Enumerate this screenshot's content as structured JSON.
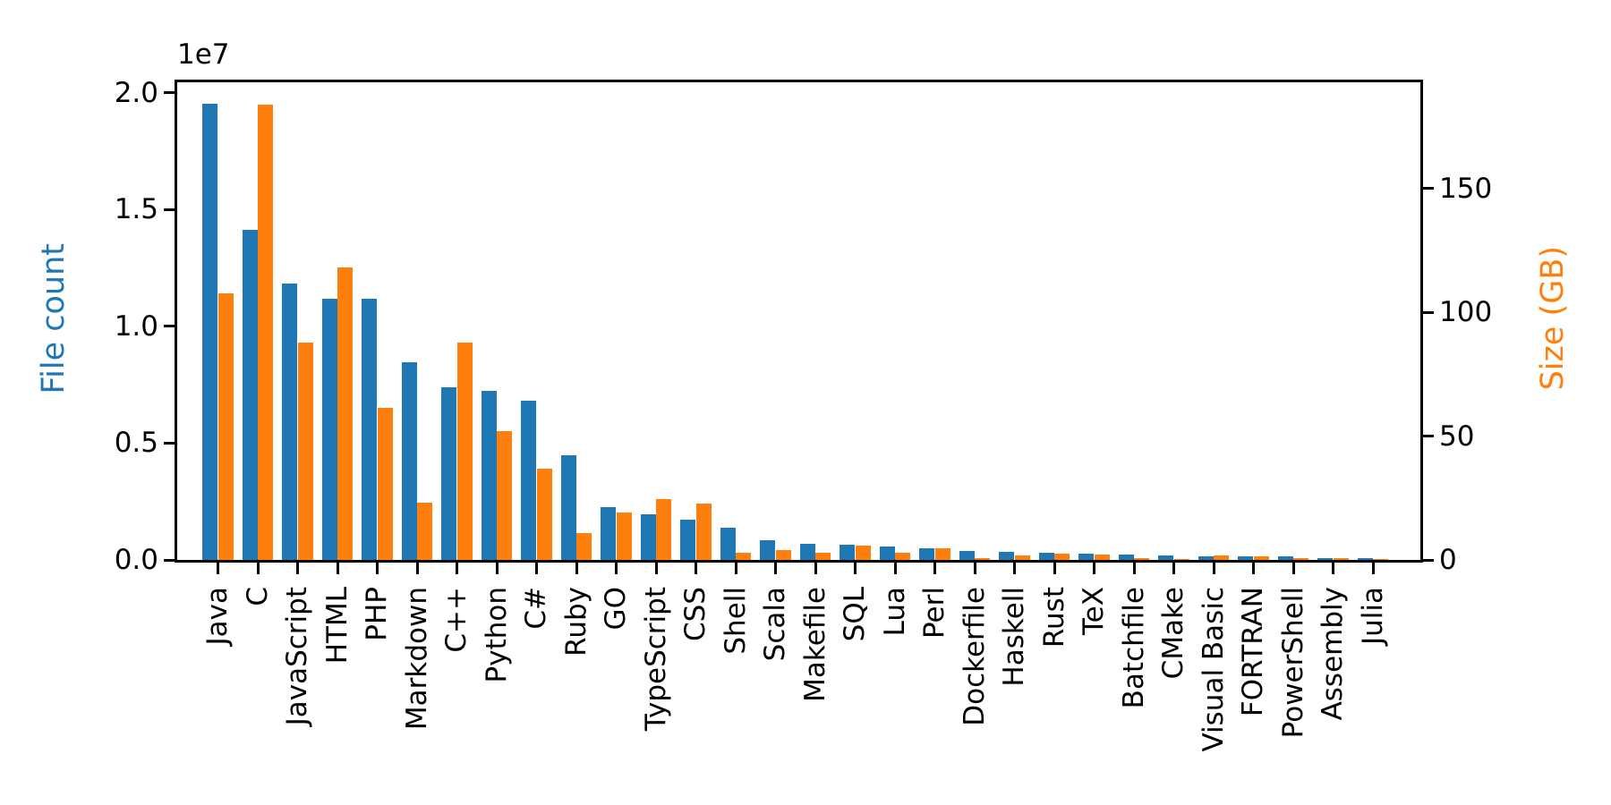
{
  "chart_data": {
    "type": "bar",
    "title": "",
    "grid": false,
    "legend": "none",
    "bar_orientation": "vertical",
    "categories": [
      "Java",
      "C",
      "JavaScript",
      "HTML",
      "PHP",
      "Markdown",
      "C++",
      "Python",
      "C#",
      "Ruby",
      "GO",
      "TypeScript",
      "CSS",
      "Shell",
      "Scala",
      "Makefile",
      "SQL",
      "Lua",
      "Perl",
      "Dockerfile",
      "Haskell",
      "Rust",
      "TeX",
      "Batchfile",
      "CMake",
      "Visual Basic",
      "FORTRAN",
      "PowerShell",
      "Assembly",
      "Julia"
    ],
    "series": [
      {
        "name": "File count",
        "axis": "left",
        "color": "#1f77b4",
        "values": [
          19548190,
          14143113,
          11839883,
          11178557,
          11177610,
          8464626,
          7380520,
          7226626,
          6811652,
          4473331,
          2265436,
          1940406,
          1734406,
          1385648,
          835755,
          679430,
          656671,
          578554,
          497949,
          366505,
          340623,
          322431,
          251015,
          236945,
          175282,
          155652,
          142038,
          136846,
          82905,
          58317
        ]
      },
      {
        "name": "Size (GB)",
        "axis": "right",
        "color": "#ff7f0e",
        "values": [
          107.7,
          183.83,
          87.82,
          118.12,
          61.41,
          23.09,
          87.73,
          52.03,
          36.83,
          10.95,
          19.28,
          24.59,
          22.67,
          3.01,
          3.87,
          2.92,
          5.67,
          2.81,
          4.7,
          0.71,
          1.85,
          2.68,
          2.15,
          0.7,
          0.54,
          1.91,
          1.62,
          0.69,
          0.78,
          0.29
        ]
      }
    ],
    "left_axis": {
      "label": "File count",
      "label_color": "#1f77b4",
      "offset_text": "1e7",
      "ticks": [
        0,
        5000000,
        10000000,
        15000000,
        20000000
      ],
      "tick_labels": [
        "0.0",
        "0.5",
        "1.0",
        "1.5",
        "2.0"
      ],
      "ylim": [
        0,
        20450000
      ]
    },
    "right_axis": {
      "label": "Size (GB)",
      "label_color": "#ff7f0e",
      "ticks": [
        0,
        50,
        100,
        150
      ],
      "tick_labels": [
        "0",
        "50",
        "100",
        "150"
      ],
      "ylim": [
        0,
        192.8
      ]
    }
  }
}
